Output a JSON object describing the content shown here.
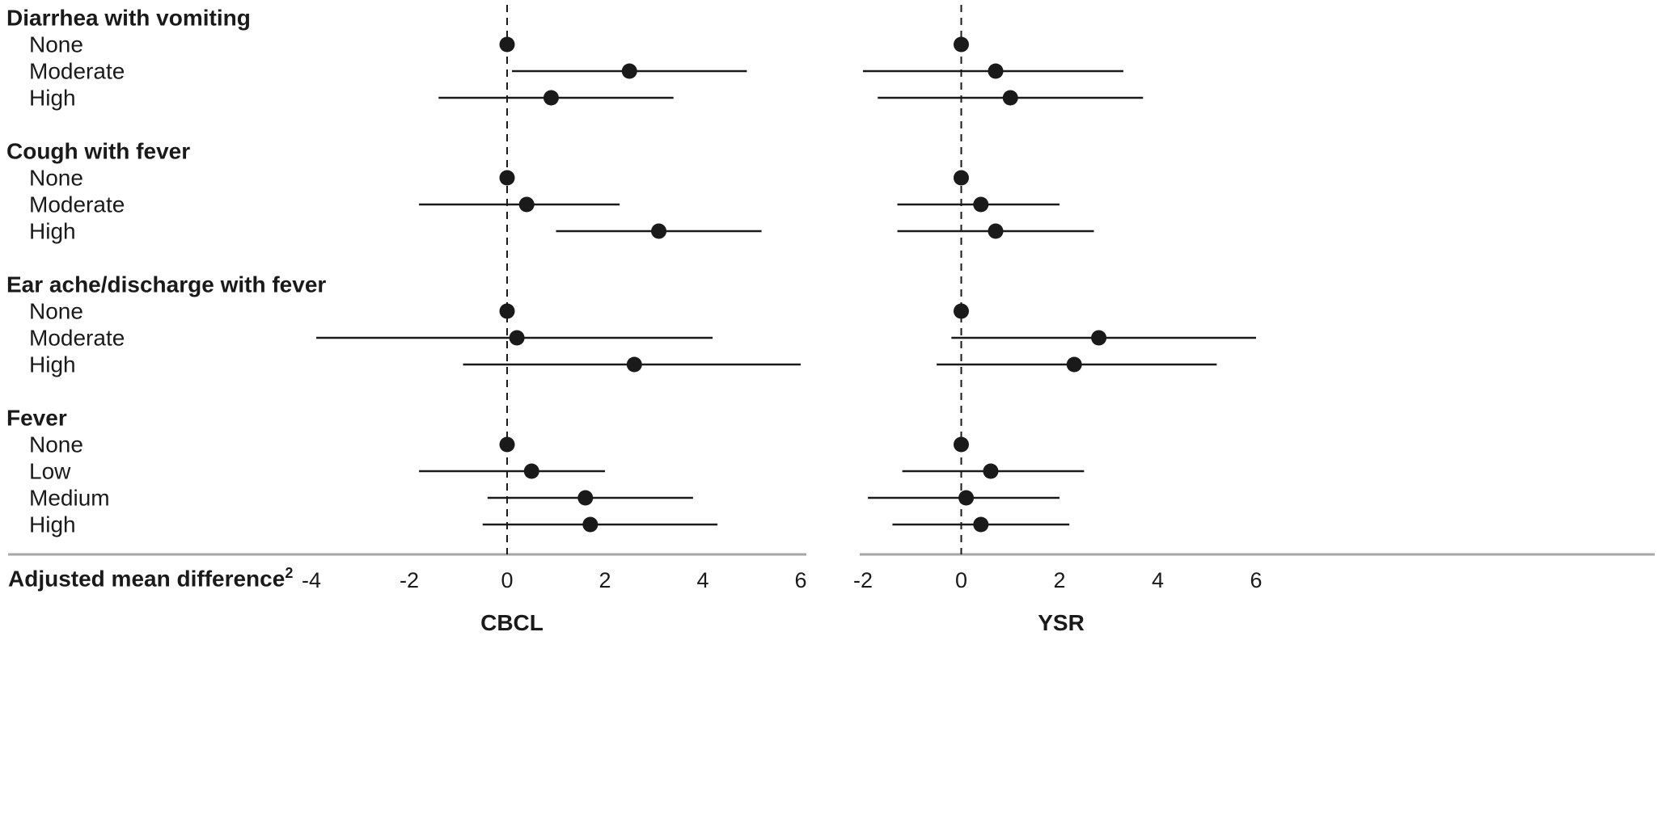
{
  "chart_data": {
    "type": "scatter",
    "subtype": "forest-plot",
    "title": "",
    "xlabel": "Adjusted mean difference",
    "xlabel_superscript": "2",
    "grid": false,
    "legend": "none",
    "marker_color": "#1a1a1a",
    "axis_line_color": "#a6a6a6",
    "panels": [
      {
        "title": "CBCL",
        "xlim": [
          -4,
          6
        ],
        "ticks": [
          -4,
          -2,
          0,
          2,
          4,
          6
        ],
        "reference_line_x": 0
      },
      {
        "title": "YSR",
        "xlim": [
          -2,
          6
        ],
        "ticks": [
          -2,
          0,
          2,
          4,
          6
        ],
        "reference_line_x": 0
      }
    ],
    "groups": [
      {
        "label": "Diarrhea with vomiting",
        "rows": [
          {
            "label": "None",
            "values": [
              {
                "est": 0,
                "lo": null,
                "hi": null
              },
              {
                "est": 0,
                "lo": null,
                "hi": null
              }
            ]
          },
          {
            "label": "Moderate",
            "values": [
              {
                "est": 2.5,
                "lo": 0.1,
                "hi": 4.9
              },
              {
                "est": 0.7,
                "lo": -2.0,
                "hi": 3.3
              }
            ]
          },
          {
            "label": "High",
            "values": [
              {
                "est": 0.9,
                "lo": -1.4,
                "hi": 3.4
              },
              {
                "est": 1.0,
                "lo": -1.7,
                "hi": 3.7
              }
            ]
          }
        ]
      },
      {
        "label": "Cough with fever",
        "rows": [
          {
            "label": "None",
            "values": [
              {
                "est": 0,
                "lo": null,
                "hi": null
              },
              {
                "est": 0,
                "lo": null,
                "hi": null
              }
            ]
          },
          {
            "label": "Moderate",
            "values": [
              {
                "est": 0.4,
                "lo": -1.8,
                "hi": 2.3
              },
              {
                "est": 0.4,
                "lo": -1.3,
                "hi": 2.0
              }
            ]
          },
          {
            "label": "High",
            "values": [
              {
                "est": 3.1,
                "lo": 1.0,
                "hi": 5.2
              },
              {
                "est": 0.7,
                "lo": -1.3,
                "hi": 2.7
              }
            ]
          }
        ]
      },
      {
        "label": "Ear ache/discharge with fever",
        "rows": [
          {
            "label": "None",
            "values": [
              {
                "est": 0,
                "lo": null,
                "hi": null
              },
              {
                "est": 0,
                "lo": null,
                "hi": null
              }
            ]
          },
          {
            "label": "Moderate",
            "values": [
              {
                "est": 0.2,
                "lo": -3.9,
                "hi": 4.2
              },
              {
                "est": 2.8,
                "lo": -0.2,
                "hi": 6.0
              }
            ]
          },
          {
            "label": "High",
            "values": [
              {
                "est": 2.6,
                "lo": -0.9,
                "hi": 6.0
              },
              {
                "est": 2.3,
                "lo": -0.5,
                "hi": 5.2
              }
            ]
          }
        ]
      },
      {
        "label": "Fever",
        "rows": [
          {
            "label": "None",
            "values": [
              {
                "est": 0,
                "lo": null,
                "hi": null
              },
              {
                "est": 0,
                "lo": null,
                "hi": null
              }
            ]
          },
          {
            "label": "Low",
            "values": [
              {
                "est": 0.5,
                "lo": -1.8,
                "hi": 2.0
              },
              {
                "est": 0.6,
                "lo": -1.2,
                "hi": 2.5
              }
            ]
          },
          {
            "label": "Medium",
            "values": [
              {
                "est": 1.6,
                "lo": -0.4,
                "hi": 3.8
              },
              {
                "est": 0.1,
                "lo": -1.9,
                "hi": 2.0
              }
            ]
          },
          {
            "label": "High",
            "values": [
              {
                "est": 1.7,
                "lo": -0.5,
                "hi": 4.3
              },
              {
                "est": 0.4,
                "lo": -1.4,
                "hi": 2.2
              }
            ]
          }
        ]
      }
    ]
  }
}
